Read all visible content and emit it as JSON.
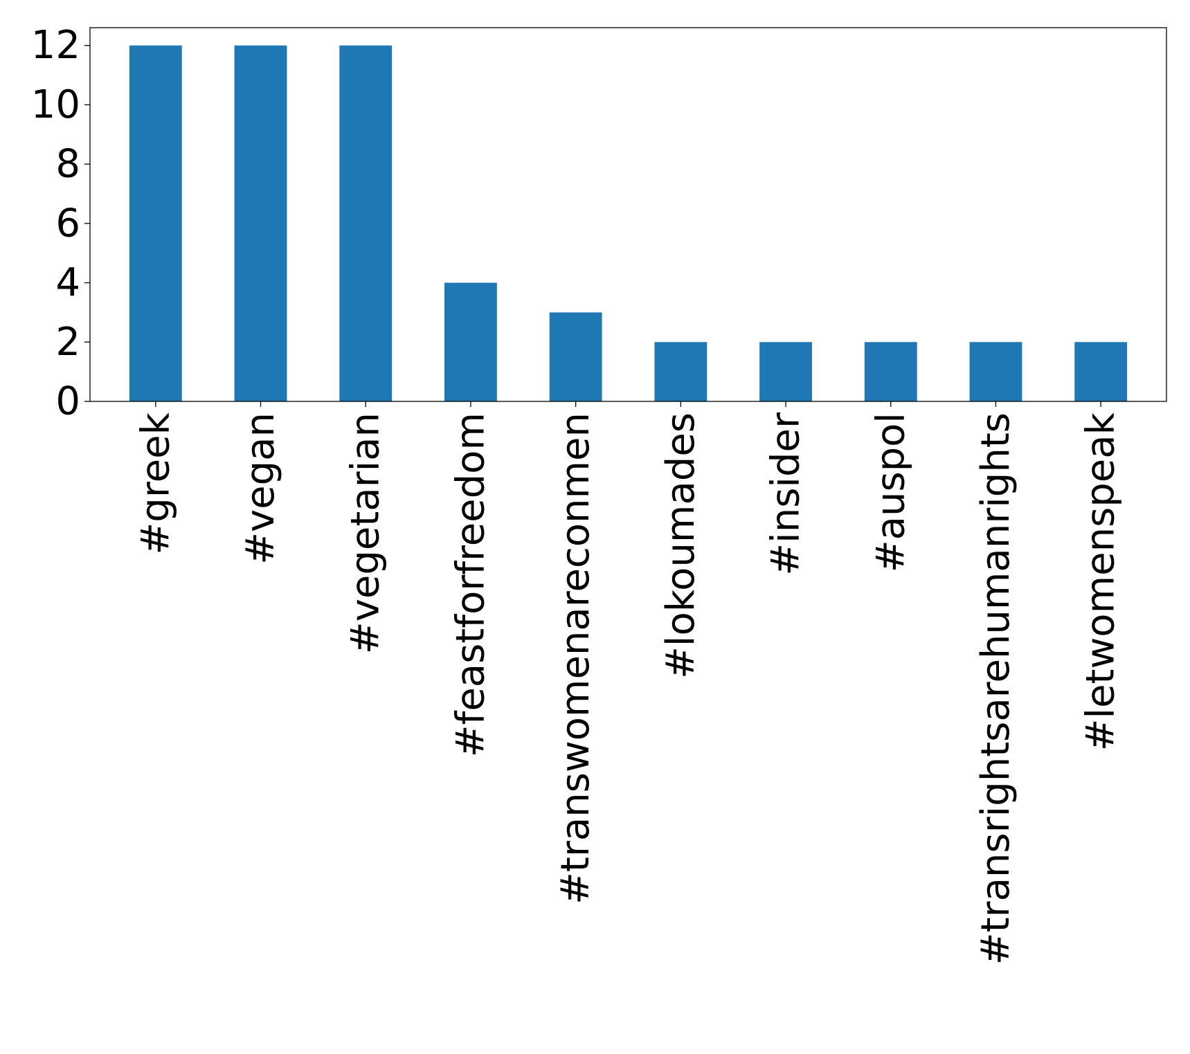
{
  "chart_data": {
    "type": "bar",
    "categories": [
      "#greek",
      "#vegan",
      "#vegetarian",
      "#feastforfreedom",
      "#transwomenareconmen",
      "#lokoumades",
      "#insider",
      "#auspol",
      "#transrightsarehumanrights",
      "#letwomenspeak"
    ],
    "values": [
      12,
      12,
      12,
      4,
      3,
      2,
      2,
      2,
      2,
      2
    ],
    "title": "",
    "xlabel": "",
    "ylabel": "",
    "ylim": [
      0,
      12.6
    ],
    "yticks": [
      "0",
      "2",
      "4",
      "6",
      "8",
      "10",
      "12"
    ],
    "grid": false,
    "legend": "none",
    "x_tick_rotation": "vertical",
    "colors": {
      "bar": "#1f77b4",
      "axes": "#000000",
      "background": "#ffffff"
    }
  }
}
